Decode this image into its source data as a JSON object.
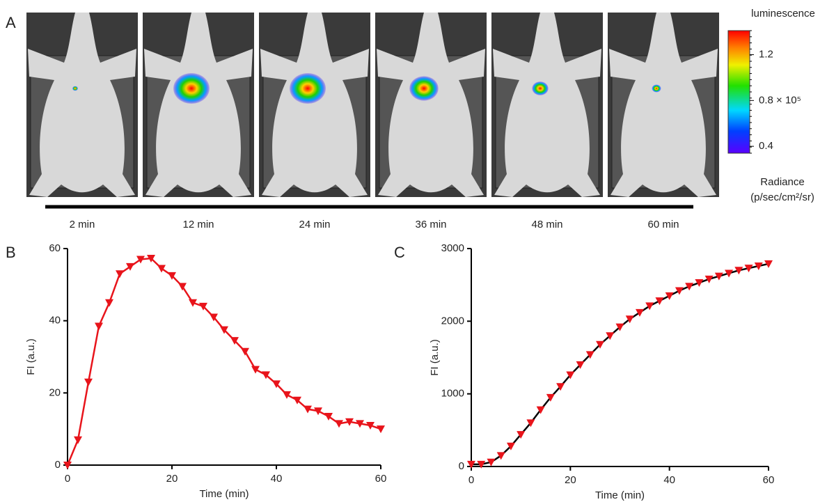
{
  "panel_labels": [
    "A",
    "B",
    "C"
  ],
  "imaging": {
    "colorbar_title": "luminescence",
    "timepoints": [
      "2 min",
      "12 min",
      "24 min",
      "36 min",
      "48 min",
      "60 min"
    ],
    "clim": [
      0.34,
      1.41
    ],
    "cticks": [
      0.4,
      {
        "value": 0.8,
        "label": "0.8 × 10⁵"
      },
      1.2
    ],
    "unit_label": [
      "Radiance",
      "(p/sec/cm²/sr)"
    ]
  },
  "chart_data": [
    {
      "type": "line",
      "xlabel": "Time (min)",
      "ylabel": "FI (a.u.)",
      "x": [
        0,
        2,
        4,
        6,
        8,
        10,
        12,
        14,
        16,
        18,
        20,
        22,
        24,
        26,
        28,
        30,
        32,
        34,
        36,
        38,
        40,
        42,
        44,
        46,
        48,
        50,
        52,
        54,
        56,
        58,
        60
      ],
      "series": [
        {
          "color": "#e8141b",
          "line_color": "#e8141b",
          "values": [
            0,
            7,
            23,
            38.5,
            45,
            53,
            55,
            57,
            57.3,
            54.5,
            52.5,
            49.5,
            45,
            44,
            41,
            37.5,
            34.5,
            31.5,
            26.5,
            25,
            22.5,
            19.5,
            18,
            15.5,
            15,
            13.5,
            11.5,
            12,
            11.5,
            11,
            10
          ]
        }
      ],
      "xlim": [
        0,
        60
      ],
      "xticks": [
        0,
        20,
        40,
        60
      ],
      "ylim": [
        0,
        60
      ],
      "yticks": [
        0,
        20,
        40,
        60
      ]
    },
    {
      "type": "line",
      "xlabel": "Time (min)",
      "ylabel": "FI (a.u.)",
      "x": [
        0,
        2,
        4,
        6,
        8,
        10,
        12,
        14,
        16,
        18,
        20,
        22,
        24,
        26,
        28,
        30,
        32,
        34,
        36,
        38,
        40,
        42,
        44,
        46,
        48,
        50,
        52,
        54,
        56,
        58,
        60
      ],
      "series": [
        {
          "color": "#e8141b",
          "line_color": "#000000",
          "values": [
            30,
            30,
            60,
            150,
            280,
            440,
            600,
            780,
            950,
            1100,
            1260,
            1400,
            1540,
            1680,
            1800,
            1920,
            2030,
            2120,
            2210,
            2280,
            2350,
            2420,
            2480,
            2530,
            2580,
            2620,
            2660,
            2700,
            2730,
            2760,
            2790
          ]
        }
      ],
      "xlim": [
        0,
        60
      ],
      "xticks": [
        0,
        20,
        40,
        60
      ],
      "ylim": [
        0,
        3000
      ],
      "yticks": [
        0,
        1000,
        2000,
        3000
      ]
    }
  ]
}
